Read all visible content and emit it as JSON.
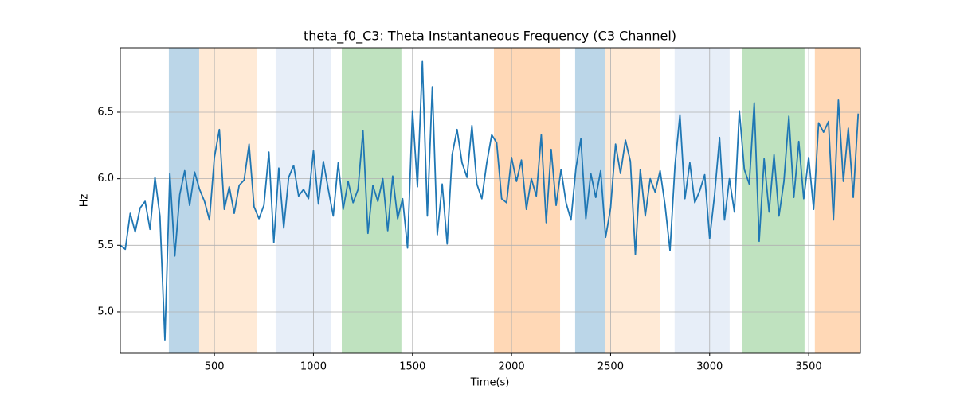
{
  "chart_data": {
    "type": "line",
    "title": "theta_f0_C3: Theta Instantaneous Frequency (C3 Channel)",
    "x_label": "Time(s)",
    "y_label": "Hz",
    "xlim": [
      25,
      3761
    ],
    "ylim": [
      4.689,
      6.984
    ],
    "xticks": [
      500,
      1000,
      1500,
      2000,
      2500,
      3000,
      3500
    ],
    "yticks": [
      {
        "value": 5,
        "label": "5.0"
      },
      5.5,
      {
        "value": 6,
        "label": "6.0"
      },
      6.5
    ],
    "grid": true,
    "color": "#1f77b4",
    "span_opacity": 0.3,
    "spans": [
      {
        "start": 270,
        "end": 423,
        "color": "#1f77b4"
      },
      {
        "start": 423,
        "end": 713,
        "color": "#ffbb78"
      },
      {
        "start": 809,
        "end": 1087,
        "color": "#aec7e8"
      },
      {
        "start": 1143,
        "end": 1444,
        "color": "#2ca02c"
      },
      {
        "start": 1911,
        "end": 2245,
        "color": "#ff7f0e"
      },
      {
        "start": 2321,
        "end": 2474,
        "color": "#1f77b4"
      },
      {
        "start": 2474,
        "end": 2751,
        "color": "#ffbb78"
      },
      {
        "start": 2823,
        "end": 3101,
        "color": "#aec7e8"
      },
      {
        "start": 3165,
        "end": 3479,
        "color": "#2ca02c"
      },
      {
        "start": 3531,
        "end": 3761,
        "color": "#ff7f0e"
      }
    ],
    "x": [
      25,
      50,
      75,
      100,
      125,
      150,
      175,
      200,
      225,
      250,
      275,
      300,
      325,
      350,
      375,
      400,
      425,
      450,
      475,
      500,
      525,
      550,
      575,
      600,
      625,
      650,
      675,
      700,
      725,
      750,
      775,
      800,
      825,
      850,
      875,
      900,
      925,
      950,
      975,
      1000,
      1025,
      1050,
      1075,
      1100,
      1125,
      1150,
      1175,
      1200,
      1225,
      1250,
      1275,
      1300,
      1325,
      1350,
      1375,
      1400,
      1425,
      1450,
      1475,
      1500,
      1525,
      1550,
      1575,
      1600,
      1625,
      1650,
      1675,
      1700,
      1725,
      1750,
      1775,
      1800,
      1825,
      1850,
      1875,
      1900,
      1925,
      1950,
      1975,
      2000,
      2025,
      2050,
      2075,
      2100,
      2125,
      2150,
      2175,
      2200,
      2225,
      2250,
      2275,
      2300,
      2325,
      2350,
      2375,
      2400,
      2425,
      2450,
      2475,
      2500,
      2525,
      2550,
      2575,
      2600,
      2625,
      2650,
      2675,
      2700,
      2725,
      2750,
      2775,
      2800,
      2825,
      2850,
      2875,
      2900,
      2925,
      2950,
      2975,
      3000,
      3025,
      3050,
      3075,
      3100,
      3125,
      3150,
      3175,
      3200,
      3225,
      3250,
      3275,
      3300,
      3325,
      3350,
      3375,
      3400,
      3425,
      3450,
      3475,
      3500,
      3525,
      3550,
      3575,
      3600,
      3625,
      3650,
      3675,
      3700,
      3725,
      3750
    ],
    "values": [
      5.5,
      5.47,
      5.74,
      5.6,
      5.78,
      5.83,
      5.62,
      6.01,
      5.72,
      4.79,
      6.04,
      5.42,
      5.88,
      6.06,
      5.8,
      6.05,
      5.92,
      5.83,
      5.69,
      6.16,
      6.37,
      5.77,
      5.94,
      5.74,
      5.95,
      5.99,
      6.26,
      5.79,
      5.7,
      5.8,
      6.2,
      5.52,
      6.08,
      5.63,
      6.01,
      6.1,
      5.87,
      5.92,
      5.85,
      6.21,
      5.81,
      6.13,
      5.92,
      5.72,
      6.12,
      5.77,
      5.98,
      5.82,
      5.92,
      6.36,
      5.59,
      5.95,
      5.83,
      6.0,
      5.61,
      6.02,
      5.7,
      5.85,
      5.48,
      6.51,
      5.94,
      6.88,
      5.72,
      6.69,
      5.58,
      5.96,
      5.51,
      6.18,
      6.37,
      6.12,
      6.01,
      6.4,
      5.96,
      5.85,
      6.12,
      6.33,
      6.27,
      5.85,
      5.82,
      6.16,
      5.98,
      6.14,
      5.77,
      6.0,
      5.87,
      6.33,
      5.67,
      6.22,
      5.8,
      6.07,
      5.82,
      5.69,
      6.08,
      6.3,
      5.7,
      6.04,
      5.86,
      6.06,
      5.56,
      5.78,
      6.26,
      6.04,
      6.29,
      6.13,
      5.43,
      6.07,
      5.72,
      6.0,
      5.9,
      6.06,
      5.8,
      5.46,
      6.1,
      6.48,
      5.85,
      6.12,
      5.82,
      5.91,
      6.03,
      5.55,
      5.88,
      6.31,
      5.69,
      6.0,
      5.75,
      6.51,
      6.07,
      5.96,
      6.57,
      5.53,
      6.15,
      5.75,
      6.18,
      5.72,
      5.98,
      6.47,
      5.86,
      6.28,
      5.85,
      6.16,
      5.77,
      6.42,
      6.35,
      6.43,
      5.69,
      6.59,
      5.98,
      6.38,
      5.86,
      6.49
    ]
  }
}
